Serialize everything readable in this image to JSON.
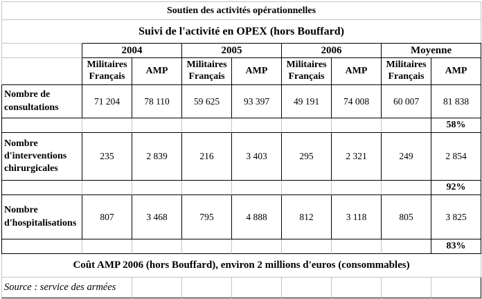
{
  "header": {
    "title": "Soutien des activités opérationnelles",
    "subtitle": "Suivi de l'activité en OPEX (hors Bouffard)"
  },
  "columns": {
    "year_groups": [
      "2004",
      "2005",
      "2006",
      "Moyenne"
    ],
    "sub_headers": [
      "Militaires Français",
      "AMP",
      "Militaires Français",
      "AMP",
      "Militaires Français",
      "AMP",
      "Militaires Français",
      "AMP"
    ]
  },
  "rows": [
    {
      "label": "Nombre de consultations",
      "values": [
        "71 204",
        "78 110",
        "59 625",
        "93 397",
        "49 191",
        "74 008",
        "60 007",
        "81 838"
      ],
      "ratio": "58%"
    },
    {
      "label": "Nombre d'interventions chirurgicales",
      "values": [
        "235",
        "2 839",
        "216",
        "3 403",
        "295",
        "2 321",
        "249",
        "2 854"
      ],
      "ratio": "92%"
    },
    {
      "label": "Nombre d'hospitalisations",
      "values": [
        "807",
        "3 468",
        "795",
        "4 888",
        "812",
        "3 118",
        "805",
        "3 825"
      ],
      "ratio": "83%"
    }
  ],
  "footer": {
    "cost_note": "Coût AMP 2006 (hors Bouffard), environ 2 millions d'euros (consommables)",
    "source": "Source : service des armées"
  }
}
